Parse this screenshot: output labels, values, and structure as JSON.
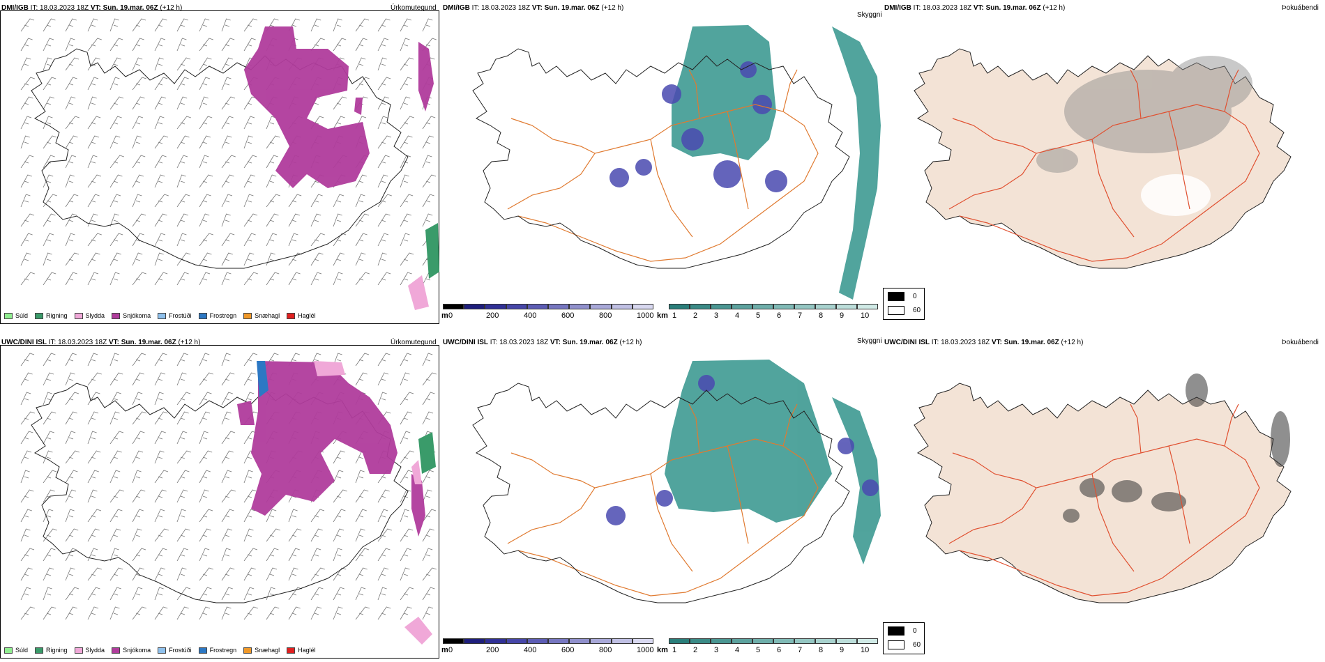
{
  "panels": [
    {
      "model": "DMI/IGB",
      "it_label": "IT:",
      "it_value": "18.03.2023 18Z",
      "vt_label": "VT:",
      "vt_value": "Sun. 19.mar. 06Z",
      "lead": "(+12 h)",
      "title": "Úrkomutegund"
    },
    {
      "model": "DMI/IGB",
      "it_label": "IT:",
      "it_value": "18.03.2023 18Z",
      "vt_label": "VT:",
      "vt_value": "Sun. 19.mar. 06Z",
      "lead": "(+12 h)",
      "title": "Skyggni"
    },
    {
      "model": "DMI/IGB",
      "it_label": "IT:",
      "it_value": "18.03.2023 18Z",
      "vt_label": "VT:",
      "vt_value": "Sun. 19.mar. 06Z",
      "lead": "(+12 h)",
      "title": "Þokuábendi"
    },
    {
      "model": "UWC/DINI ISL",
      "it_label": "IT:",
      "it_value": "18.03.2023 18Z",
      "vt_label": "VT:",
      "vt_value": "Sun. 19.mar. 06Z",
      "lead": "(+12 h)",
      "title": "Úrkomutegund"
    },
    {
      "model": "UWC/DINI ISL",
      "it_label": "IT:",
      "it_value": "18.03.2023 18Z",
      "vt_label": "VT:",
      "vt_value": "Sun. 19.mar. 06Z",
      "lead": "(+12 h)",
      "title": "Skyggni"
    },
    {
      "model": "UWC/DINI ISL",
      "it_label": "IT:",
      "it_value": "18.03.2023 18Z",
      "vt_label": "VT:",
      "vt_value": "Sun. 19.mar. 06Z",
      "lead": "(+12 h)",
      "title": "Þokuábendi"
    }
  ],
  "precip_legend": [
    {
      "label": "Súld",
      "color": "#90ee90"
    },
    {
      "label": "Rigning",
      "color": "#3a9b6a"
    },
    {
      "label": "Slydda",
      "color": "#f0a8d8"
    },
    {
      "label": "Snjókoma",
      "color": "#b03c9c"
    },
    {
      "label": "Frostúði",
      "color": "#8ec0ec"
    },
    {
      "label": "Frostregn",
      "color": "#2c78c4"
    },
    {
      "label": "Snæhagl",
      "color": "#f09828"
    },
    {
      "label": "Haglél",
      "color": "#e02020"
    }
  ],
  "ceiling_scale": {
    "unit": "m",
    "ticks": [
      "0",
      "200",
      "400",
      "600",
      "800",
      "1000"
    ],
    "colors": [
      "#000000",
      "#1e1e7c",
      "#303096",
      "#4646a8",
      "#5c5cb4",
      "#7676c0",
      "#9090cc",
      "#a8a8d8",
      "#c0c0e4",
      "#d8d8f0"
    ]
  },
  "visibility_scale": {
    "unit": "km",
    "ticks": [
      "1",
      "2",
      "3",
      "4",
      "5",
      "6",
      "7",
      "8",
      "9",
      "10"
    ],
    "colors": [
      "#2a7e7a",
      "#3a8a86",
      "#4a9692",
      "#5ca29e",
      "#6eaeaa",
      "#80bab6",
      "#94c6c2",
      "#a8d2ce",
      "#bcdeda",
      "#d0eae6"
    ]
  },
  "fog_legend": {
    "items": [
      {
        "value": "0",
        "color": "#000000"
      },
      {
        "value": "60",
        "color": "#ffffff"
      }
    ]
  },
  "colors": {
    "road": "#e07a30",
    "fog_road": "#e05030",
    "land": "#f3e3d6",
    "snow": "#b03c9c",
    "teal": "#3e9a92",
    "cloud": "#4a4ab0"
  }
}
